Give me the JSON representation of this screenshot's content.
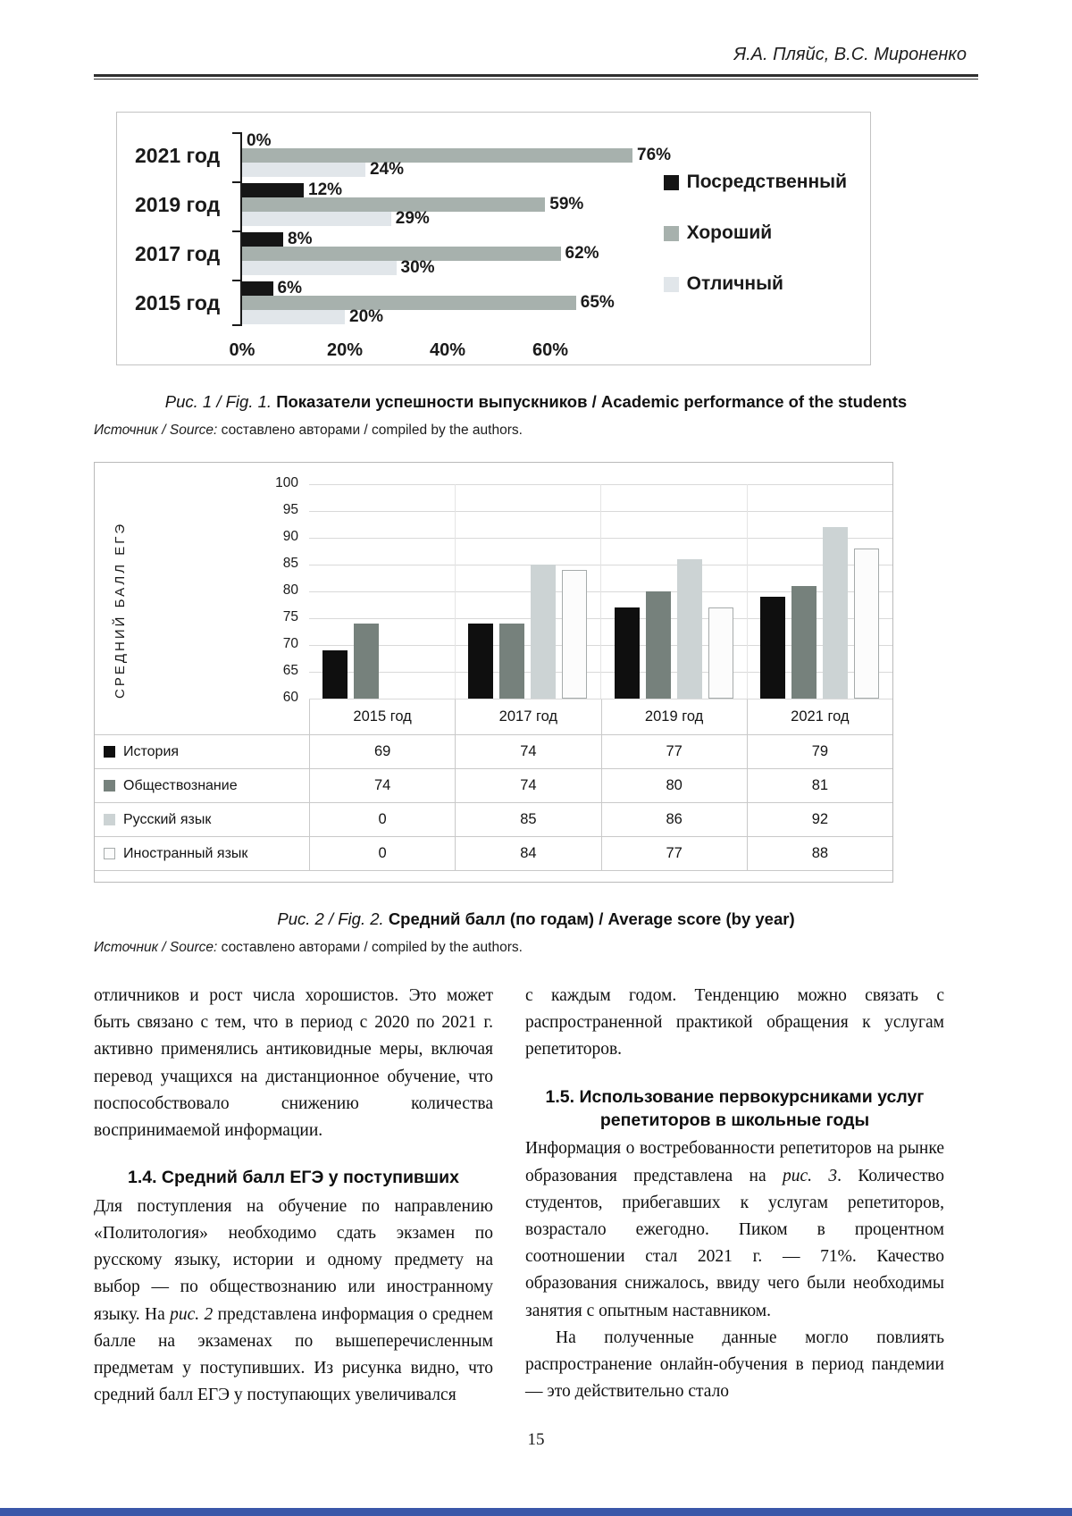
{
  "page": {
    "header_author": "Я.А. Пляйс, В.С. Мироненко",
    "page_number": "15",
    "accent_bar_color": "#3a57a9"
  },
  "fig1": {
    "caption_prefix": "Рис. 1 / Fig. 1. ",
    "caption_text": "Показатели успешности выпускников / Academic performance of the students",
    "source_prefix": "Источник / Source: ",
    "source_text": "составлено авторами / compiled by the authors."
  },
  "fig2": {
    "caption_prefix": "Рис. 2 / Fig. 2. ",
    "caption_text": "Средний балл (по годам) / Average score (by year)",
    "source_prefix": "Источник / Source: ",
    "source_text": "составлено авторами / compiled by the authors."
  },
  "chart_data": [
    {
      "type": "bar",
      "orientation": "horizontal",
      "title": "Показатели успешности выпускников",
      "categories": [
        "2021 год",
        "2019 год",
        "2017 год",
        "2015 год"
      ],
      "series": [
        {
          "key": "mediocre",
          "name": "Посредственный",
          "color": "#151515",
          "values": [
            0,
            12,
            8,
            6
          ]
        },
        {
          "key": "good",
          "name": "Хороший",
          "color": "#a7b1ad",
          "values": [
            76,
            59,
            62,
            65
          ]
        },
        {
          "key": "excellent",
          "name": "Отличный",
          "color": "#e1e6ea",
          "values": [
            24,
            29,
            30,
            20
          ]
        }
      ],
      "value_suffix": "%",
      "x_ticks": [
        "0%",
        "20%",
        "40%",
        "60%"
      ],
      "x_tick_values": [
        0,
        20,
        40,
        60
      ],
      "xlim": [
        0,
        80
      ],
      "grid": false,
      "legend_position": "right"
    },
    {
      "type": "bar",
      "orientation": "vertical",
      "title": "Средний балл (по годам)",
      "ylabel": "СРЕДНИЙ БАЛЛ ЕГЭ",
      "categories": [
        "2015 год",
        "2017 год",
        "2019 год",
        "2021 год"
      ],
      "series": [
        {
          "key": "history",
          "name": "История",
          "color": "#0f0f0f",
          "values": [
            69,
            74,
            77,
            79
          ]
        },
        {
          "key": "social-studies",
          "name": "Обществознание",
          "color": "#76817c",
          "values": [
            74,
            74,
            80,
            81
          ]
        },
        {
          "key": "russian",
          "name": "Русский язык",
          "color": "#ccd3d4",
          "values": [
            0,
            85,
            86,
            92
          ]
        },
        {
          "key": "foreign-language",
          "name": "Иностранный язык",
          "color": "#fcfcfc",
          "border": "#a6abab",
          "values": [
            0,
            84,
            77,
            88
          ]
        }
      ],
      "ylim": [
        60,
        100
      ],
      "y_ticks": [
        100,
        95,
        90,
        85,
        80,
        75,
        70,
        65,
        60
      ],
      "grid": true,
      "legend_position": "table-left",
      "data_table": true
    }
  ],
  "article": {
    "col1": {
      "p1": "отличников и рост числа хорошистов. Это может быть связано с тем, что в период с 2020 по 2021 г. активно применялись антиковидные меры, включая перевод учащихся на дистанционное обучение, что поспособствовало снижению количества воспринимаемой информации.",
      "h14": "1.4. Средний балл ЕГЭ у поступивших",
      "p2_parts": [
        "Для поступления на обучение по направлению «Политология» необходимо сдать экзамен по русскому языку, истории и одному предмету на выбор — по обществознанию или иностранному языку. На ",
        "рис. 2",
        " представлена информация о среднем балле на экзаменах по вышеперечисленным предметам у поступивших. Из рисунка видно, что средний балл ЕГЭ у поступающих увеличивался"
      ]
    },
    "col2": {
      "p1": "с каждым годом. Тенденцию можно связать с распространенной практикой обращения к услугам репетиторов.",
      "h15": "1.5. Использование первокурсниками услуг репетиторов в школьные годы",
      "p2_parts": [
        "Информация о востребованности репетиторов на рынке образования представлена на ",
        "рис. 3",
        ". Количество студентов, прибегавших к услугам репетиторов, возрастало ежегодно. Пиком в процентном соотношении стал 2021 г. — 71%. Качество образования снижалось, ввиду чего были необходимы занятия с опытным наставником."
      ],
      "p3": "На полученные данные могло повлиять распространение онлайн-обучения в период пандемии — это действительно стало"
    }
  }
}
